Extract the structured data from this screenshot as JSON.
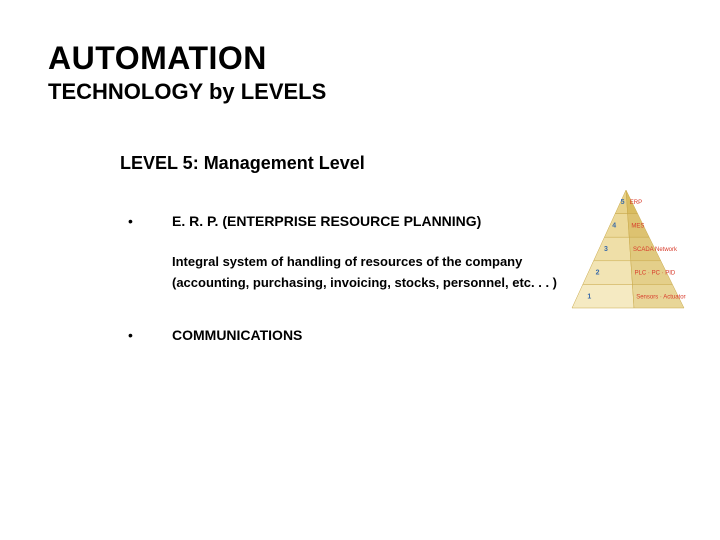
{
  "title": {
    "main": "AUTOMATION",
    "sub": "TECHNOLOGY by LEVELS"
  },
  "content": {
    "level_heading": "LEVEL 5: Management Level",
    "items": [
      {
        "bullet": "•",
        "label": "E. R. P. (ENTERPRISE RESOURCE PLANNING)",
        "desc": [
          "Integral system of handling of resources of the company",
          "(accounting, purchasing, invoicing, stocks, personnel, etc. . . )"
        ]
      },
      {
        "bullet": "•",
        "label": "COMMUNICATIONS",
        "desc": []
      }
    ]
  },
  "pyramid": {
    "type": "infographic",
    "background": "#ffffff",
    "levels": [
      {
        "n": "5",
        "label": "ERP",
        "face_left": "#e8d28a",
        "face_right": "#d9bc60",
        "text_color": "#d83a2a",
        "n_color": "#3a6aa8"
      },
      {
        "n": "4",
        "label": "MES",
        "face_left": "#ecd99a",
        "face_right": "#ddc270",
        "text_color": "#d83a2a",
        "n_color": "#3a6aa8"
      },
      {
        "n": "3",
        "label": "SCADA Network",
        "face_left": "#efdfa8",
        "face_right": "#e0c97e",
        "text_color": "#d83a2a",
        "n_color": "#3a6aa8"
      },
      {
        "n": "2",
        "label": "PLC · PC · PID",
        "face_left": "#f2e4b4",
        "face_right": "#e4cf8a",
        "text_color": "#d83a2a",
        "n_color": "#3a6aa8"
      },
      {
        "n": "1",
        "label": "Sensors · Actuators · Hardware",
        "face_left": "#f5eac2",
        "face_right": "#e8d698",
        "text_color": "#d83a2a",
        "n_color": "#3a6aa8"
      }
    ],
    "outline": "#c9a94a",
    "label_fontsize": 6,
    "n_fontsize": 7
  },
  "colors": {
    "text": "#000000",
    "background": "#ffffff"
  }
}
